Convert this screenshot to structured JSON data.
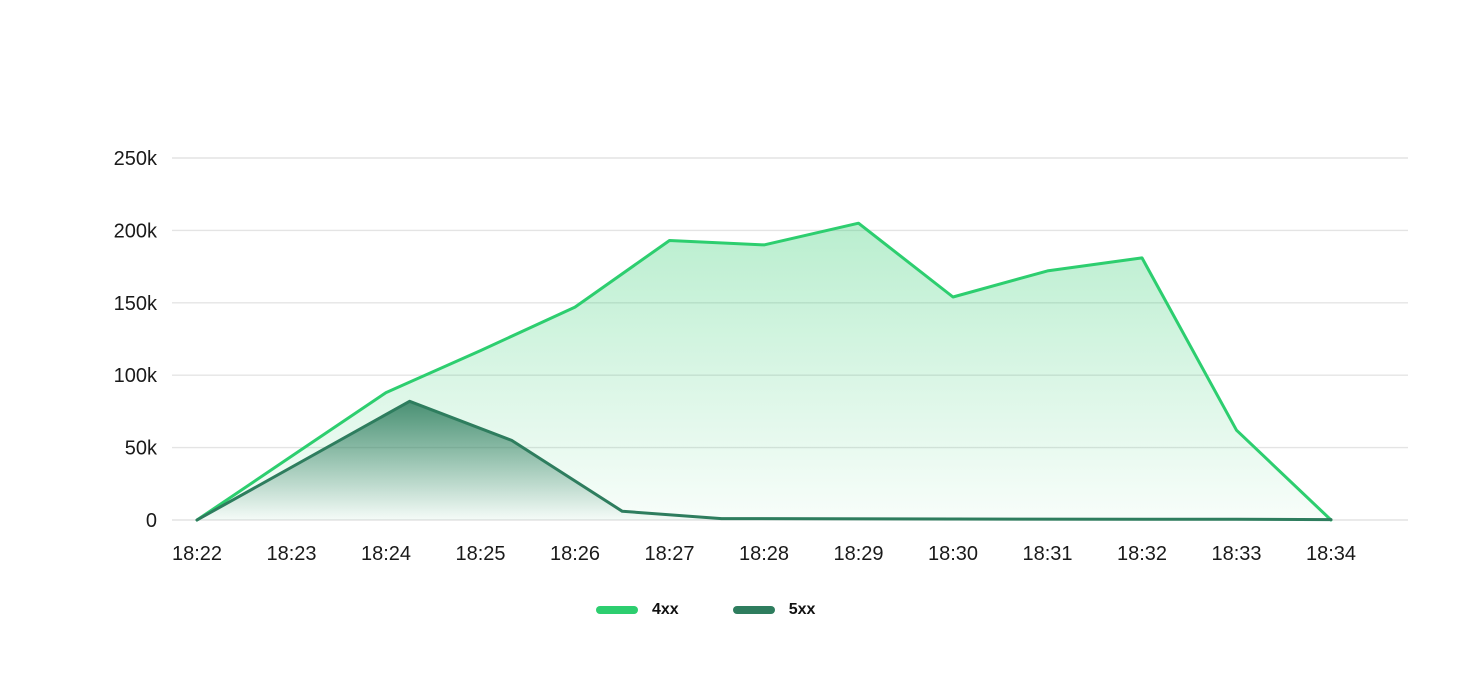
{
  "page": {
    "background": "#ffffff",
    "text_color": "#1a1a1a",
    "gridline_color": "#e4e4e4"
  },
  "chart_data": {
    "type": "area",
    "title": "",
    "grid": true,
    "x_axis": {
      "labels": [
        "18:22",
        "18:23",
        "18:24",
        "18:25",
        "18:26",
        "18:27",
        "18:28",
        "18:29",
        "18:30",
        "18:31",
        "18:32",
        "18:33",
        "18:34"
      ],
      "note_t_units": "t = minutes after 18:22"
    },
    "y_axis": {
      "ticks": [
        "0",
        "50k",
        "100k",
        "150k",
        "200k",
        "250k"
      ],
      "min": 0,
      "max": 250000
    },
    "legend": {
      "position": "bottom"
    },
    "series": [
      {
        "name": "4xx",
        "color": "#2dce6f",
        "fill_from": "rgba(46, 204, 110, 0.40)",
        "fill_to": "rgba(46, 204, 110, 0.03)",
        "points": [
          {
            "t": 0,
            "v": 0
          },
          {
            "t": 1,
            "v": 44000
          },
          {
            "t": 2,
            "v": 88000
          },
          {
            "t": 3,
            "v": 117000
          },
          {
            "t": 4,
            "v": 147000
          },
          {
            "t": 5,
            "v": 193000
          },
          {
            "t": 6,
            "v": 190000
          },
          {
            "t": 7,
            "v": 205000
          },
          {
            "t": 8,
            "v": 154000
          },
          {
            "t": 9,
            "v": 172000
          },
          {
            "t": 10,
            "v": 181000
          },
          {
            "t": 11,
            "v": 62000
          },
          {
            "t": 12,
            "v": 0
          }
        ]
      },
      {
        "name": "5xx",
        "color": "#2e7d5e",
        "fill_from": "rgba(46, 125, 94, 0.85)",
        "fill_to": "rgba(46, 125, 94, 0)",
        "points": [
          {
            "t": 0,
            "v": 0
          },
          {
            "t": 2.25,
            "v": 82000
          },
          {
            "t": 3.33,
            "v": 55000
          },
          {
            "t": 4.5,
            "v": 6000
          },
          {
            "t": 5.55,
            "v": 1000
          },
          {
            "t": 8,
            "v": 700
          },
          {
            "t": 11,
            "v": 500
          },
          {
            "t": 12,
            "v": 300
          }
        ]
      }
    ]
  }
}
